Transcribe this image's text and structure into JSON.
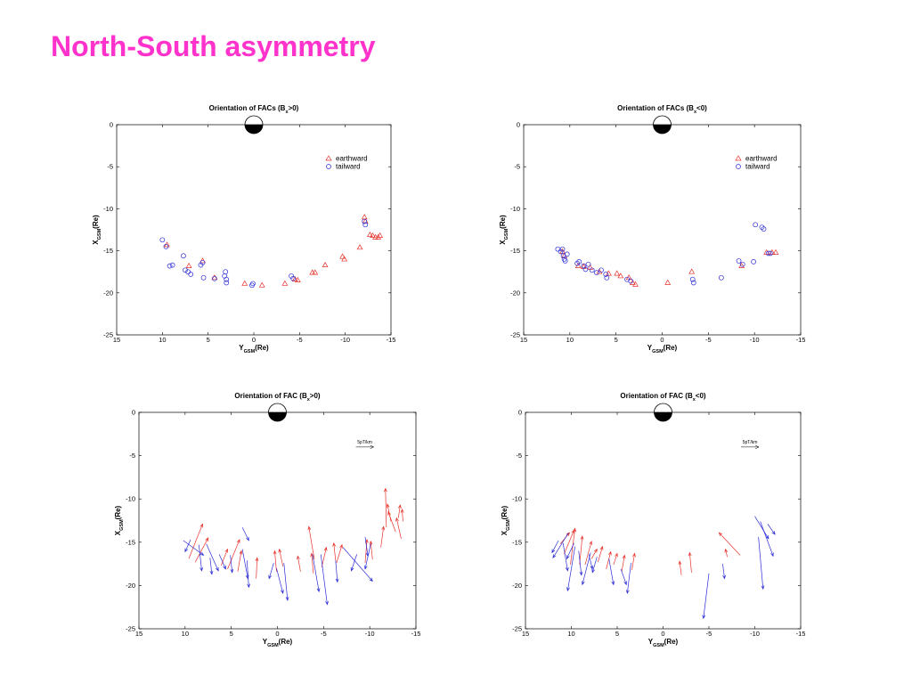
{
  "slide": {
    "title": "North-South asymmetry"
  },
  "colors": {
    "title": "#ff33cc",
    "earthward": "#e8312a",
    "tailward": "#2b2bd6"
  },
  "legend": {
    "earthward": "earthward",
    "tailward": "tailward"
  },
  "scale_label": "5pT/km",
  "chart_data": [
    {
      "id": "p1",
      "type": "scatter",
      "title_main": "Orientation of FACs (B",
      "title_sub": "x",
      "title_end": ">0)",
      "xlabel_main": "Y",
      "xlabel_sub": "GSM",
      "xlabel_end": "(Re)",
      "ylabel_main": "X",
      "ylabel_sub": "GSM",
      "ylabel_end": "(Re)",
      "xlim": [
        15,
        -15
      ],
      "ylim": [
        -25,
        0
      ],
      "xticks": [
        15,
        10,
        5,
        0,
        -5,
        -10,
        -15
      ],
      "yticks": [
        0,
        -5,
        -10,
        -15,
        -20,
        -25
      ],
      "legend_position": "top-right",
      "series": [
        {
          "name": "earthward",
          "marker": "triangle",
          "points": [
            [
              9.5,
              -14.3
            ],
            [
              7.1,
              -16.8
            ],
            [
              5.6,
              -16.2
            ],
            [
              4.3,
              -18.2
            ],
            [
              1.0,
              -18.9
            ],
            [
              -0.9,
              -19.1
            ],
            [
              -3.4,
              -18.9
            ],
            [
              -4.5,
              -18.4
            ],
            [
              -4.8,
              -18.5
            ],
            [
              -6.4,
              -17.6
            ],
            [
              -6.7,
              -17.6
            ],
            [
              -7.8,
              -16.7
            ],
            [
              -9.7,
              -15.7
            ],
            [
              -9.9,
              -16.0
            ],
            [
              -11.6,
              -14.6
            ],
            [
              -12.1,
              -11.0
            ],
            [
              -12.2,
              -11.5
            ],
            [
              -12.7,
              -13.1
            ],
            [
              -13.0,
              -13.2
            ],
            [
              -13.3,
              -13.4
            ],
            [
              -13.6,
              -13.4
            ],
            [
              -13.8,
              -13.2
            ]
          ]
        },
        {
          "name": "tailward",
          "marker": "circle",
          "points": [
            [
              10.0,
              -13.7
            ],
            [
              9.6,
              -14.5
            ],
            [
              9.2,
              -16.8
            ],
            [
              8.9,
              -16.7
            ],
            [
              7.7,
              -15.6
            ],
            [
              7.5,
              -17.3
            ],
            [
              7.2,
              -17.5
            ],
            [
              6.9,
              -17.8
            ],
            [
              5.8,
              -16.7
            ],
            [
              5.6,
              -16.4
            ],
            [
              5.5,
              -18.2
            ],
            [
              4.3,
              -18.3
            ],
            [
              3.1,
              -17.5
            ],
            [
              3.2,
              -18.0
            ],
            [
              3.0,
              -18.4
            ],
            [
              3.0,
              -18.8
            ],
            [
              0.2,
              -19.1
            ],
            [
              0.1,
              -18.9
            ],
            [
              -4.1,
              -18.0
            ],
            [
              -4.3,
              -18.3
            ],
            [
              -12.1,
              -11.5
            ],
            [
              -12.2,
              -11.9
            ]
          ]
        }
      ]
    },
    {
      "id": "p2",
      "type": "scatter",
      "title_main": "Orientation of FACs (B",
      "title_sub": "x",
      "title_end": "<0)",
      "xlabel_main": "Y",
      "xlabel_sub": "GSM",
      "xlabel_end": "(Re)",
      "ylabel_main": "X",
      "ylabel_sub": "GSM",
      "ylabel_end": "(Re)",
      "xlim": [
        15,
        -15
      ],
      "ylim": [
        -25,
        0
      ],
      "xticks": [
        15,
        10,
        5,
        0,
        -5,
        -10,
        -15
      ],
      "yticks": [
        0,
        -5,
        -10,
        -15,
        -20,
        -25
      ],
      "legend_position": "top-right",
      "series": [
        {
          "name": "earthward",
          "marker": "triangle",
          "points": [
            [
              10.8,
              -15.1
            ],
            [
              10.6,
              -15.6
            ],
            [
              9.1,
              -16.8
            ],
            [
              8.5,
              -16.9
            ],
            [
              7.8,
              -17.0
            ],
            [
              6.8,
              -17.5
            ],
            [
              5.8,
              -17.7
            ],
            [
              4.9,
              -17.7
            ],
            [
              4.5,
              -18.0
            ],
            [
              3.6,
              -18.2
            ],
            [
              3.2,
              -18.8
            ],
            [
              2.9,
              -19.0
            ],
            [
              -0.6,
              -18.8
            ],
            [
              -3.2,
              -17.5
            ],
            [
              -8.6,
              -16.8
            ],
            [
              -11.3,
              -15.2
            ],
            [
              -11.9,
              -15.2
            ],
            [
              -12.3,
              -15.2
            ]
          ]
        },
        {
          "name": "tailward",
          "marker": "circle",
          "points": [
            [
              11.3,
              -14.8
            ],
            [
              11.0,
              -15.1
            ],
            [
              10.8,
              -14.8
            ],
            [
              10.7,
              -15.6
            ],
            [
              10.6,
              -16.0
            ],
            [
              10.5,
              -16.2
            ],
            [
              10.3,
              -15.4
            ],
            [
              9.2,
              -16.5
            ],
            [
              9.0,
              -16.3
            ],
            [
              8.5,
              -16.8
            ],
            [
              8.3,
              -17.2
            ],
            [
              8.0,
              -16.6
            ],
            [
              7.6,
              -17.3
            ],
            [
              7.1,
              -17.6
            ],
            [
              6.6,
              -17.3
            ],
            [
              6.1,
              -17.8
            ],
            [
              6.0,
              -18.2
            ],
            [
              3.8,
              -18.4
            ],
            [
              3.4,
              -18.6
            ],
            [
              -3.3,
              -18.4
            ],
            [
              -3.4,
              -18.8
            ],
            [
              -6.4,
              -18.2
            ],
            [
              -8.3,
              -16.2
            ],
            [
              -8.7,
              -16.6
            ],
            [
              -9.9,
              -16.3
            ],
            [
              -10.1,
              -11.9
            ],
            [
              -10.8,
              -12.2
            ],
            [
              -11.0,
              -12.4
            ],
            [
              -11.5,
              -15.3
            ],
            [
              -11.7,
              -15.3
            ]
          ]
        }
      ]
    },
    {
      "id": "p3",
      "type": "vector",
      "title_main": "Orientation of FAC (B",
      "title_sub": "x",
      "title_end": ">0)",
      "xlabel_main": "Y",
      "xlabel_sub": "GSM",
      "xlabel_end": "(Re)",
      "ylabel_main": "X",
      "ylabel_sub": "GSM",
      "ylabel_end": "(Re)",
      "xlim": [
        15,
        -15
      ],
      "ylim": [
        -25,
        0
      ],
      "xticks": [
        15,
        10,
        5,
        0,
        -5,
        -10,
        -15
      ],
      "yticks": [
        0,
        -5,
        -10,
        -15,
        -20,
        -25
      ],
      "series": [
        {
          "name": "earthward",
          "vectors": [
            [
              9.6,
              -16.9,
              8.1,
              -12.9
            ],
            [
              8.9,
              -17.3,
              7.5,
              -14.5
            ],
            [
              6.1,
              -17.7,
              5.4,
              -15.8
            ],
            [
              5.4,
              -18.1,
              4.1,
              -14.7
            ],
            [
              4.3,
              -18.4,
              3.9,
              -16.0
            ],
            [
              2.3,
              -19.2,
              2.2,
              -16.8
            ],
            [
              0.1,
              -18.4,
              0.3,
              -16.0
            ],
            [
              -0.6,
              -17.8,
              -0.2,
              -15.8
            ],
            [
              -2.5,
              -18.4,
              -2.2,
              -16.6
            ],
            [
              -3.9,
              -18.6,
              -3.7,
              -16.3
            ],
            [
              -4.0,
              -17.0,
              -3.4,
              -13.2
            ],
            [
              -4.8,
              -17.9,
              -5.3,
              -15.6
            ],
            [
              -6.3,
              -17.1,
              -6.1,
              -15.1
            ],
            [
              -6.4,
              -17.4,
              -7.0,
              -15.3
            ],
            [
              -9.5,
              -17.4,
              -9.7,
              -14.7
            ],
            [
              -10.3,
              -17.0,
              -10.1,
              -14.9
            ],
            [
              -11.2,
              -15.6,
              -11.5,
              -13.2
            ],
            [
              -11.8,
              -13.3,
              -11.7,
              -8.8
            ],
            [
              -12.3,
              -12.6,
              -11.9,
              -10.6
            ],
            [
              -12.8,
              -13.8,
              -12.0,
              -11.5
            ],
            [
              -13.1,
              -12.2,
              -13.3,
              -10.7
            ],
            [
              -13.4,
              -14.6,
              -12.9,
              -12.2
            ],
            [
              -13.6,
              -12.6,
              -13.5,
              -11.2
            ]
          ]
        },
        {
          "name": "tailward",
          "vectors": [
            [
              10.2,
              -14.8,
              8.0,
              -16.5
            ],
            [
              9.4,
              -14.7,
              10.0,
              -16.1
            ],
            [
              8.5,
              -15.3,
              8.2,
              -18.3
            ],
            [
              7.7,
              -15.2,
              6.4,
              -18.3
            ],
            [
              7.3,
              -16.8,
              7.1,
              -18.7
            ],
            [
              6.3,
              -16.4,
              5.6,
              -18.1
            ],
            [
              5.1,
              -16.5,
              4.9,
              -18.5
            ],
            [
              3.8,
              -15.8,
              3.2,
              -19.2
            ],
            [
              3.8,
              -13.3,
              3.1,
              -14.8
            ],
            [
              3.3,
              -17.1,
              3.1,
              -20.2
            ],
            [
              0.4,
              -17.4,
              0.9,
              -19.2
            ],
            [
              0.1,
              -18.0,
              -0.6,
              -20.9
            ],
            [
              -0.7,
              -17.4,
              -1.1,
              -21.7
            ],
            [
              -3.8,
              -16.4,
              -4.5,
              -20.7
            ],
            [
              -4.7,
              -16.4,
              -5.4,
              -22.2
            ],
            [
              -6.3,
              -17.1,
              -6.5,
              -19.6
            ],
            [
              -8.6,
              -16.4,
              -8.0,
              -18.3
            ],
            [
              -10.1,
              -15.2,
              -9.5,
              -18.1
            ],
            [
              -7.1,
              -15.6,
              -10.3,
              -19.5
            ],
            [
              -9.5,
              -14.4,
              -9.8,
              -16.6
            ]
          ]
        }
      ]
    },
    {
      "id": "p4",
      "type": "vector",
      "title_main": "Orientation of FAC (B",
      "title_sub": "x",
      "title_end": "<0)",
      "xlabel_main": "Y",
      "xlabel_sub": "GSM",
      "xlabel_end": "(Re)",
      "ylabel_main": "X",
      "ylabel_sub": "GSM",
      "ylabel_end": "(Re)",
      "xlim": [
        15,
        -15
      ],
      "ylim": [
        -25,
        0
      ],
      "xticks": [
        15,
        10,
        5,
        0,
        -5,
        -10,
        -15
      ],
      "yticks": [
        0,
        -5,
        -10,
        -15,
        -20,
        -25
      ],
      "series": [
        {
          "name": "earthward",
          "vectors": [
            [
              11.2,
              -15.2,
              10.2,
              -13.9
            ],
            [
              10.8,
              -16.4,
              9.7,
              -13.6
            ],
            [
              10.1,
              -17.6,
              9.6,
              -13.4
            ],
            [
              9.1,
              -17.6,
              8.8,
              -14.3
            ],
            [
              8.5,
              -17.6,
              7.8,
              -14.9
            ],
            [
              7.8,
              -16.9,
              7.2,
              -15.8
            ],
            [
              7.1,
              -17.3,
              6.6,
              -15.5
            ],
            [
              6.2,
              -18.1,
              5.7,
              -16.1
            ],
            [
              5.4,
              -17.6,
              5.0,
              -16.3
            ],
            [
              4.5,
              -18.4,
              4.2,
              -16.5
            ],
            [
              3.4,
              -18.2,
              3.1,
              -16.3
            ],
            [
              -2.0,
              -18.8,
              -1.8,
              -17.2
            ],
            [
              -3.1,
              -18.5,
              -2.9,
              -16.2
            ],
            [
              -8.4,
              -16.5,
              -6.1,
              -13.9
            ],
            [
              -7.0,
              -16.7,
              -6.8,
              -15.8
            ]
          ]
        },
        {
          "name": "tailward",
          "vectors": [
            [
              11.4,
              -14.8,
              12.1,
              -16.2
            ],
            [
              10.3,
              -13.9,
              12.0,
              -16.8
            ],
            [
              10.9,
              -15.1,
              10.4,
              -18.3
            ],
            [
              9.7,
              -15.1,
              10.5,
              -16.9
            ],
            [
              9.6,
              -15.5,
              10.4,
              -20.6
            ],
            [
              9.2,
              -16.0,
              8.9,
              -18.8
            ],
            [
              8.1,
              -16.4,
              7.7,
              -18.1
            ],
            [
              7.9,
              -16.2,
              8.8,
              -19.9
            ],
            [
              7.2,
              -16.7,
              7.7,
              -18.5
            ],
            [
              5.9,
              -16.9,
              5.4,
              -19.9
            ],
            [
              4.6,
              -18.1,
              4.0,
              -19.9
            ],
            [
              3.5,
              -17.4,
              3.9,
              -20.9
            ],
            [
              -5.0,
              -18.6,
              -4.4,
              -23.8
            ],
            [
              -6.5,
              -17.5,
              -6.7,
              -19.2
            ],
            [
              -10.0,
              -12.0,
              -11.5,
              -14.6
            ],
            [
              -10.6,
              -12.6,
              -12.0,
              -16.6
            ],
            [
              -10.4,
              -14.4,
              -10.9,
              -20.4
            ],
            [
              -11.4,
              -12.9,
              -12.2,
              -14.1
            ]
          ]
        }
      ]
    }
  ]
}
